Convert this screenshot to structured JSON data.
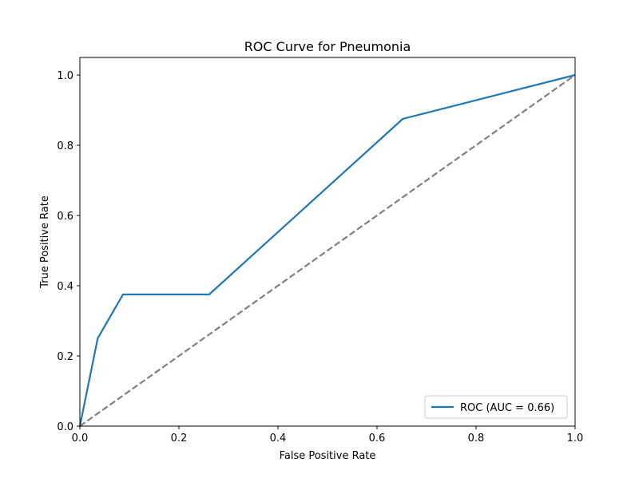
{
  "chart_data": {
    "type": "line",
    "title": "ROC Curve for Pneumonia",
    "xlabel": "False Positive Rate",
    "ylabel": "True Positive Rate",
    "xlim": [
      0.0,
      1.0
    ],
    "ylim": [
      0.0,
      1.05
    ],
    "grid": false,
    "legend_position": "lower-right",
    "x_ticks": [
      "0.0",
      "0.2",
      "0.4",
      "0.6",
      "0.8",
      "1.0"
    ],
    "y_ticks": [
      "0.0",
      "0.2",
      "0.4",
      "0.6",
      "0.8",
      "1.0"
    ],
    "series": [
      {
        "name": "ROC (AUC = 0.66)",
        "color": "#1f77b4",
        "style": "solid",
        "x": [
          0.0,
          0.036,
          0.087,
          0.261,
          0.652,
          1.0
        ],
        "y": [
          0.0,
          0.25,
          0.375,
          0.375,
          0.875,
          1.0
        ]
      },
      {
        "color": "#808080",
        "style": "dashed",
        "x": [
          0.0,
          1.0
        ],
        "y": [
          0.0,
          1.0
        ]
      }
    ]
  }
}
